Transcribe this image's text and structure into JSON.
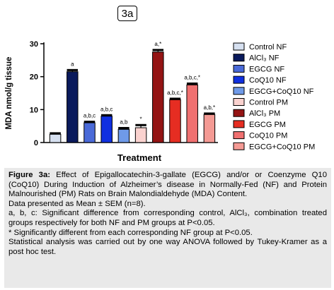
{
  "panel_label": "3a",
  "chart_data": {
    "type": "bar",
    "title": "",
    "xlabel": "Treatment",
    "ylabel": "MDA nmol/g tissue",
    "ylim": [
      0,
      30
    ],
    "yticks": [
      0,
      10,
      20,
      30
    ],
    "grid": false,
    "legend_position": "right",
    "categories": [
      "Control NF",
      "AlCl₃ NF",
      "EGCG NF",
      "CoQ10 NF",
      "EGCG+CoQ10 NF",
      "Control PM",
      "AlCl₃ PM",
      "EGCG PM",
      "CoQ10 PM",
      "EGCG+CoQ10 PM"
    ],
    "values": [
      2.5,
      21.5,
      6.0,
      8.0,
      4.0,
      4.5,
      27.5,
      13.0,
      17.5,
      8.5
    ],
    "errors": [
      0.3,
      0.5,
      0.3,
      0.3,
      0.4,
      0.8,
      0.6,
      0.3,
      0.4,
      0.3
    ],
    "bar_labels": [
      "",
      "a",
      "a,b,c",
      "a,b,c",
      "a,b",
      "*",
      "a,*",
      "a,b,c,*",
      "a,b,c,*",
      "a,b,*"
    ],
    "colors": [
      "#d6e0f0",
      "#0a1a5c",
      "#4a6ad8",
      "#1030e0",
      "#6f9ae8",
      "#fad2cf",
      "#941414",
      "#e62d22",
      "#f07070",
      "#f49a94"
    ],
    "legend": [
      "Control NF",
      "AlCl₃ NF",
      "EGCG NF",
      "CoQ10 NF",
      "EGCG+CoQ10 NF",
      "Control PM",
      "AlCl₃ PM",
      "EGCG PM",
      "CoQ10 PM",
      "EGCG+CoQ10 PM"
    ]
  },
  "caption": {
    "figure_label": "Figure 3a:",
    "figure_text": " Effect of Epigallocatechin-3-gallate (EGCG) and/or or Coenzyme Q10 (CoQ10) During Induction of Alzheimer’s disease in Normally-Fed (NF) and Protein Malnourished (PM) Rats on Brain Malondialdehyde (MDA) Content.",
    "line2": "Data presented as Mean ± SEM (n=8).",
    "line3": "a, b, c: Significant difference from corresponding control, AlCl₃, combination treated groups respectively for both NF and PM groups at P<0.05.",
    "line4": "* Significantly different from each corresponding NF group at P<0.05.",
    "line5": "Statistical analysis was carried out by one way ANOVA followed by Tukey-Kramer as a post hoc test."
  }
}
